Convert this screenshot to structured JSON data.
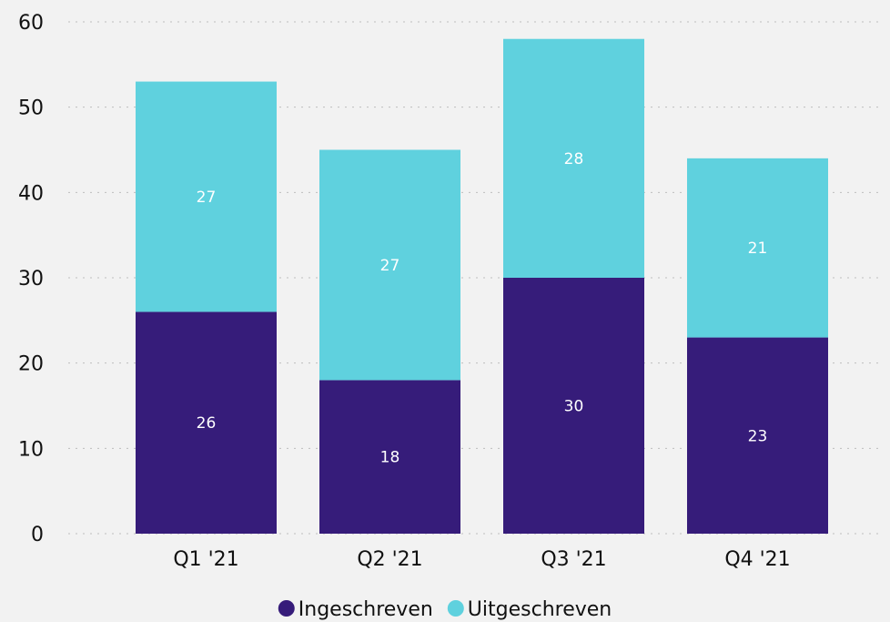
{
  "chart_data": {
    "type": "bar",
    "stacked": true,
    "categories": [
      "Q1 '21",
      "Q2 '21",
      "Q3 '21",
      "Q4 '21"
    ],
    "series": [
      {
        "name": "Ingeschreven",
        "color": "#361c7a",
        "values": [
          26,
          18,
          30,
          23
        ]
      },
      {
        "name": "Uitgeschreven",
        "color": "#5fd1de",
        "values": [
          27,
          27,
          28,
          21
        ]
      }
    ],
    "ylim": [
      0,
      60
    ],
    "yticks": [
      0,
      10,
      20,
      30,
      40,
      50,
      60
    ],
    "grid": true,
    "legend_position": "bottom-center",
    "title": "",
    "xlabel": "",
    "ylabel": ""
  }
}
